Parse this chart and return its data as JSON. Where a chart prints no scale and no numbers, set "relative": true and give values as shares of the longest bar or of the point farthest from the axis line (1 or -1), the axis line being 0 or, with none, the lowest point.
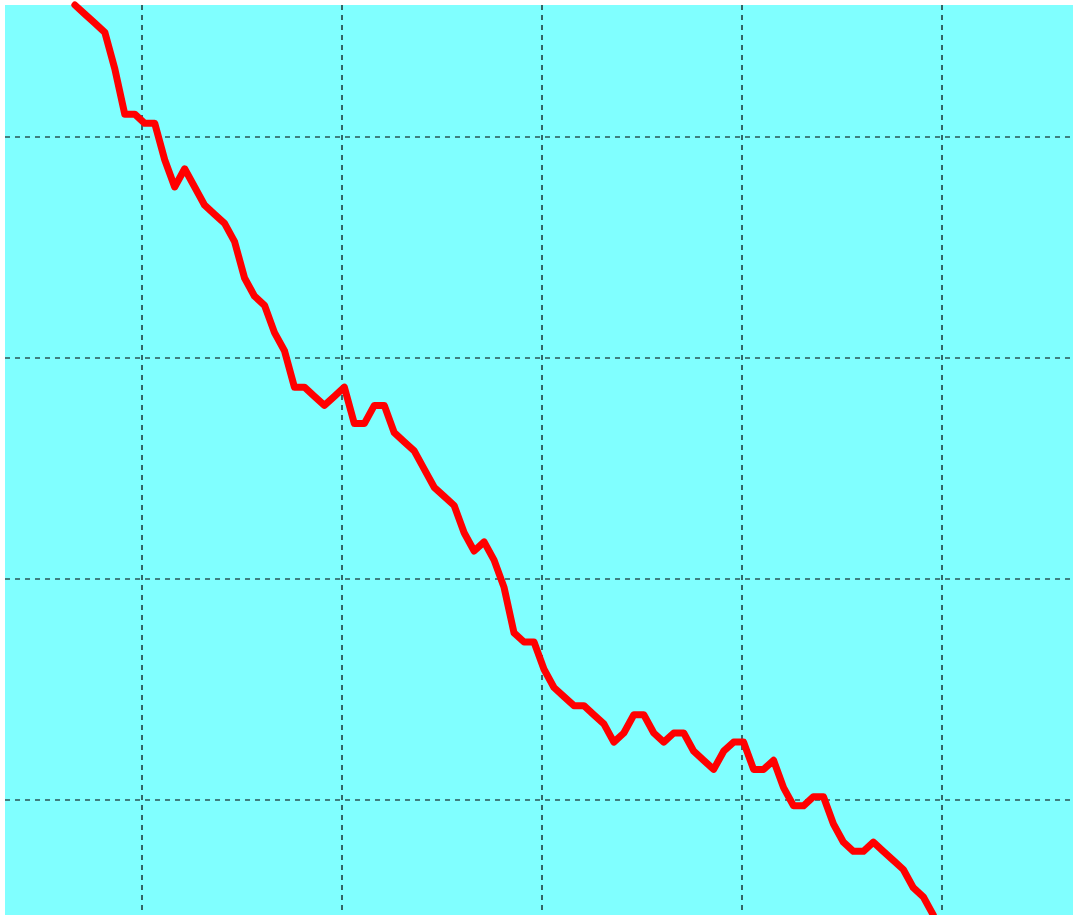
{
  "chart_data": {
    "type": "line",
    "relative": true,
    "grid": true,
    "line_style": "solid",
    "categories": [
      null,
      null,
      null,
      null,
      null,
      null,
      null,
      null,
      null,
      null,
      null,
      null,
      null,
      null,
      null,
      null,
      null,
      null,
      null,
      null,
      null,
      null,
      null,
      null,
      null,
      null,
      null,
      null,
      null,
      null,
      null,
      null,
      null,
      null,
      null,
      null,
      null,
      null,
      null,
      null,
      null,
      null,
      null,
      null,
      null,
      null,
      null,
      null,
      null,
      null,
      null,
      null,
      null,
      null,
      null,
      null,
      null,
      null,
      null,
      null,
      null,
      null,
      null,
      null,
      null,
      null,
      null,
      null,
      null,
      null,
      null,
      null,
      null,
      null,
      null,
      null,
      null,
      null,
      null,
      null,
      null,
      null,
      null,
      null,
      null,
      null,
      null,
      null,
      null,
      null,
      null,
      null,
      null,
      null,
      null,
      null,
      null,
      null,
      null,
      null,
      null,
      null,
      null,
      null,
      null,
      null,
      null,
      null
    ],
    "series": [
      {
        "color": "#ff0000",
        "values": [
          null,
          null,
          null,
          null,
          null,
          null,
          null,
          1.0,
          0.99,
          0.98,
          0.97,
          0.93,
          0.88,
          0.88,
          0.87,
          0.87,
          0.83,
          0.8,
          0.82,
          0.8,
          0.78,
          0.77,
          0.76,
          0.74,
          0.7,
          0.68,
          0.67,
          0.64,
          0.62,
          0.58,
          0.58,
          0.57,
          0.56,
          0.57,
          0.58,
          0.54,
          0.54,
          0.56,
          0.56,
          0.53,
          0.52,
          0.51,
          0.49,
          0.47,
          0.46,
          0.45,
          0.42,
          0.4,
          0.41,
          0.39,
          0.36,
          0.31,
          0.3,
          0.3,
          0.27,
          0.25,
          0.24,
          0.23,
          0.23,
          0.22,
          0.21,
          0.19,
          0.2,
          0.22,
          0.22,
          0.2,
          0.19,
          0.2,
          0.2,
          0.18,
          0.17,
          0.16,
          0.18,
          0.19,
          0.19,
          0.16,
          0.16,
          0.17,
          0.14,
          0.12,
          0.12,
          0.13,
          0.13,
          0.1,
          0.08,
          0.07,
          0.07,
          0.08,
          0.07,
          0.06,
          0.05,
          0.03,
          0.02,
          0.0,
          null,
          null,
          null,
          null,
          null,
          null,
          null,
          null,
          null,
          null,
          null,
          null,
          null,
          null
        ]
      }
    ]
  }
}
